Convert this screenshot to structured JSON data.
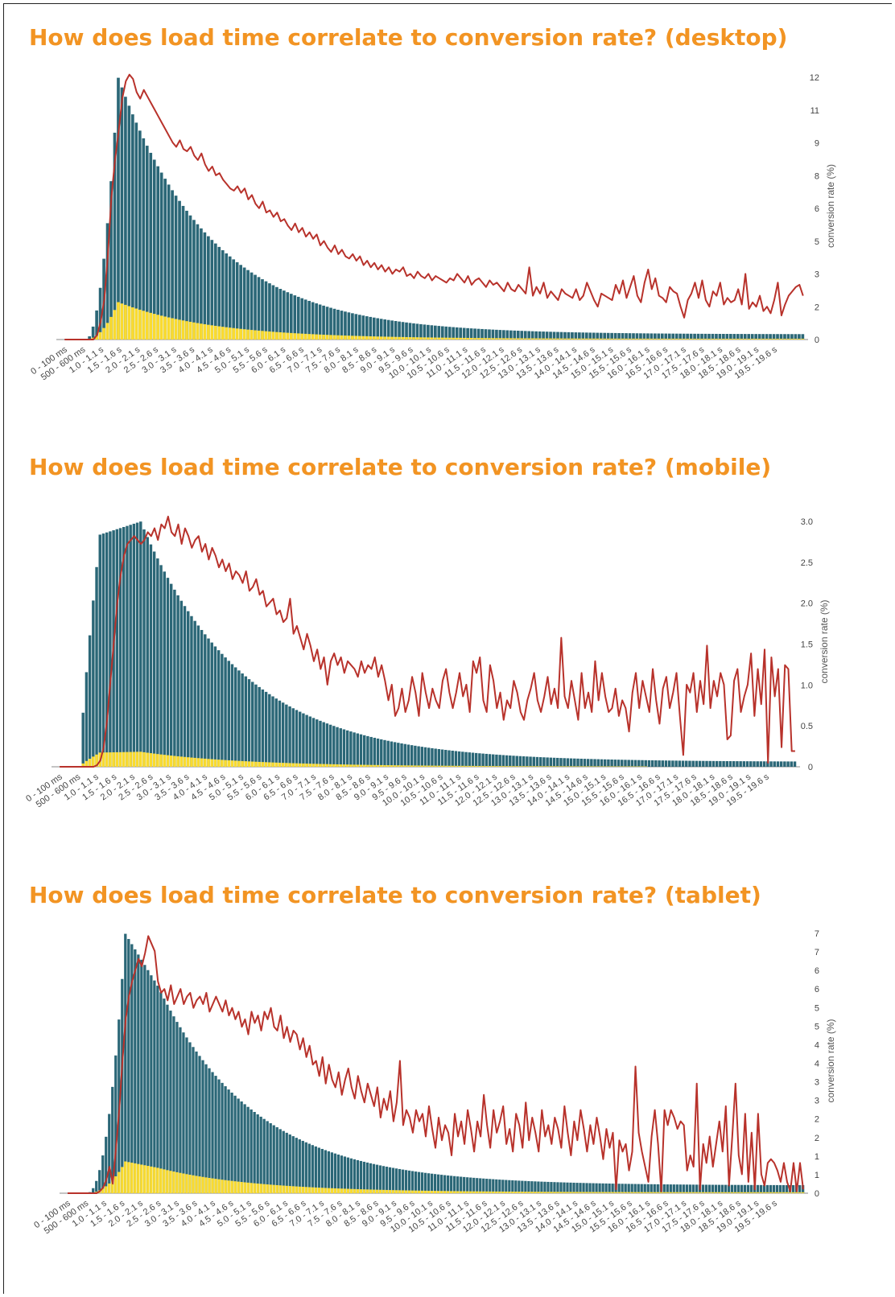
{
  "chart_data": [
    {
      "type": "bar",
      "title": "How does load time correlate to conversion rate? (desktop)",
      "ylabel": "conversion rate (%)",
      "yticks": [
        "12",
        "11",
        "9",
        "8",
        "6",
        "5",
        "3",
        "2",
        "0"
      ],
      "ylim": [
        0,
        12.2
      ],
      "peak_bin": 15,
      "line_peak_bin": 16,
      "tail_end": 0.12,
      "yellow_peak": 0.14,
      "line_values": [
        0,
        0,
        0,
        0,
        0,
        0,
        0,
        0,
        0,
        0.2,
        0.8,
        1.8,
        3.8,
        6.5,
        8.2,
        9.5,
        11.0,
        11.8,
        12.1,
        11.9,
        11.3,
        11.0,
        11.4,
        11.1,
        10.8,
        10.5,
        10.2,
        9.9,
        9.6,
        9.3,
        9.0,
        8.8,
        9.1,
        8.7,
        8.6,
        8.8,
        8.4,
        8.2,
        8.5,
        8.0,
        7.7,
        7.9,
        7.5,
        7.6,
        7.3,
        7.1,
        6.9,
        6.8,
        7.0,
        6.7,
        6.9,
        6.4,
        6.6,
        6.2,
        6.0,
        6.3,
        5.8,
        5.9,
        5.6,
        5.8,
        5.4,
        5.5,
        5.2,
        5.0,
        5.3,
        4.9,
        5.1,
        4.7,
        4.9,
        4.6,
        4.8,
        4.3,
        4.5,
        4.2,
        4.0,
        4.3,
        3.9,
        4.1,
        3.8,
        3.7,
        3.9,
        3.6,
        3.8,
        3.4,
        3.6,
        3.3,
        3.5,
        3.2,
        3.4,
        3.1,
        3.3,
        3.0,
        3.2,
        3.1,
        3.3,
        2.9,
        3.0,
        2.8,
        3.1,
        2.9,
        2.8,
        3.0,
        2.7,
        2.9,
        2.8,
        2.7,
        2.6,
        2.8,
        2.7,
        3.0,
        2.8,
        2.6,
        2.9,
        2.5,
        2.7,
        2.8,
        2.6,
        2.4,
        2.7,
        2.5,
        2.6,
        2.4,
        2.2,
        2.6,
        2.3,
        2.2,
        2.5,
        2.3,
        2.1,
        3.3,
        2.0,
        2.4,
        2.1,
        2.6,
        1.9,
        2.2,
        2.0,
        1.8,
        2.3,
        2.1,
        2.0,
        1.9,
        2.3,
        1.8,
        2.0,
        2.6,
        2.2,
        1.8,
        1.5,
        2.1,
        2.0,
        1.9,
        1.8,
        2.5,
        2.1,
        2.7,
        1.9,
        2.4,
        2.9,
        2.0,
        1.7,
        2.6,
        3.2,
        2.3,
        2.8,
        2.0,
        1.9,
        1.7,
        2.4,
        2.2,
        2.1,
        1.5,
        1.0,
        1.8,
        2.1,
        2.6,
        1.9,
        2.7,
        1.8,
        1.5,
        2.2,
        2.0,
        2.6,
        1.6,
        1.9,
        1.7,
        1.8,
        2.3,
        1.6,
        3.0,
        1.4,
        1.7,
        1.5,
        2.0,
        1.3,
        1.5,
        1.2,
        1.8,
        2.6,
        1.1,
        1.6,
        2.0,
        2.2,
        2.4,
        2.5,
        2.0
      ],
      "categories": [
        "0 - 100 ms",
        "500 - 600 ms",
        "1.0 - 1.1 s",
        "1.5 - 1.6 s",
        "2.0 - 2.1 s",
        "2.5 - 2.6 s",
        "3.0 - 3.1 s",
        "3.5 - 3.6 s",
        "4.0 - 4.1 s",
        "4.5 - 4.6 s",
        "5.0 - 5.1 s",
        "5.5 - 5.6 s",
        "6.0 - 6.1 s",
        "6.5 - 6.6 s",
        "7.0 - 7.1 s",
        "7.5 - 7.6 s",
        "8.0 - 8.1 s",
        "8.5 - 8.6 s",
        "9.0 - 9.1 s",
        "9.5 - 9.6 s",
        "10.0 - 10.1 s",
        "10.5 - 10.6 s",
        "11.0 - 11.1 s",
        "11.5 - 11.6 s",
        "12.0 - 12.1 s",
        "12.5 - 12.6 s",
        "13.0 - 13.1 s",
        "13.5 - 13.6 s",
        "14.0 - 14.1 s",
        "14.5 - 14.6 s",
        "15.0 - 15.1 s",
        "15.5 - 15.6 s",
        "16.0 - 16.1 s",
        "16.5 - 16.6 s",
        "17.0 - 17.1 s",
        "17.5 - 17.6 s",
        "18.0 - 18.1 s",
        "18.5 - 18.6 s",
        "19.0 - 19.1 s",
        "19.5 - 19.6 s"
      ],
      "colors": {
        "bars": "#2b6777",
        "secondary_bars": "#fadb2f",
        "line": "#b8322b"
      },
      "grid": false
    },
    {
      "type": "bar",
      "title": "How does load time correlate to conversion rate? (mobile)",
      "ylabel": "conversion rate (%)",
      "yticks": [
        "3.0",
        "2.5",
        "2.0",
        "1.5",
        "1.0",
        "0.5",
        "0"
      ],
      "ylim": [
        0,
        3.2
      ],
      "peak_bin": 24,
      "plateau_start": 12,
      "line_peak_bin": 26,
      "tail_end": 0.03,
      "yellow_peak": 0.06,
      "line_values": [
        0,
        0,
        0,
        0,
        0,
        0,
        0,
        0,
        0,
        0,
        0,
        0.02,
        0.08,
        0.25,
        0.6,
        1.1,
        1.6,
        2.1,
        2.45,
        2.7,
        2.85,
        2.9,
        2.95,
        2.9,
        2.85,
        2.9,
        3.0,
        2.95,
        3.05,
        2.9,
        3.1,
        3.05,
        3.2,
        3.0,
        2.95,
        3.1,
        2.85,
        3.05,
        2.95,
        2.8,
        2.9,
        2.95,
        2.75,
        2.85,
        2.65,
        2.8,
        2.7,
        2.55,
        2.65,
        2.5,
        2.6,
        2.4,
        2.5,
        2.45,
        2.35,
        2.5,
        2.25,
        2.3,
        2.4,
        2.2,
        2.25,
        2.05,
        2.1,
        2.15,
        1.95,
        2.0,
        1.85,
        1.9,
        2.15,
        1.7,
        1.8,
        1.65,
        1.5,
        1.7,
        1.55,
        1.35,
        1.5,
        1.25,
        1.4,
        1.05,
        1.35,
        1.45,
        1.3,
        1.4,
        1.2,
        1.35,
        1.3,
        1.25,
        1.15,
        1.35,
        1.2,
        1.3,
        1.25,
        1.4,
        1.15,
        1.3,
        1.1,
        0.85,
        1.05,
        0.65,
        0.75,
        1.0,
        0.7,
        0.85,
        1.15,
        0.95,
        0.65,
        1.2,
        0.95,
        0.75,
        1.0,
        0.85,
        0.75,
        1.1,
        1.25,
        0.95,
        0.75,
        0.95,
        1.2,
        0.9,
        1.05,
        0.7,
        1.35,
        1.2,
        1.4,
        0.85,
        0.7,
        1.3,
        1.1,
        0.75,
        0.95,
        0.6,
        0.85,
        0.75,
        1.1,
        0.95,
        0.7,
        0.6,
        0.85,
        1.0,
        1.2,
        0.85,
        0.7,
        0.9,
        1.15,
        0.8,
        1.0,
        0.75,
        1.65,
        0.9,
        0.75,
        1.1,
        0.85,
        0.6,
        1.2,
        0.75,
        0.95,
        0.7,
        1.35,
        0.85,
        1.2,
        0.9,
        0.7,
        0.75,
        1.0,
        0.65,
        0.85,
        0.75,
        0.45,
        0.95,
        1.2,
        0.75,
        1.1,
        0.9,
        0.7,
        1.25,
        0.85,
        0.55,
        1.0,
        1.15,
        0.75,
        0.95,
        1.2,
        0.65,
        0.15,
        1.05,
        0.95,
        1.2,
        0.7,
        1.1,
        0.8,
        1.55,
        0.75,
        1.1,
        0.9,
        1.2,
        1.05,
        0.35,
        0.4,
        1.1,
        1.25,
        0.7,
        0.9,
        1.05,
        1.45,
        0.65,
        1.25,
        0.8,
        1.5,
        0.05,
        1.4,
        0.9,
        1.25,
        0.25,
        1.3,
        1.25,
        0.2,
        0.2
      ],
      "categories": [
        "0 - 100 ms",
        "500 - 600 ms",
        "1.0 - 1.1 s",
        "1.5 - 1.6 s",
        "2.0 - 2.1 s",
        "2.5 - 2.6 s",
        "3.0 - 3.1 s",
        "3.5 - 3.6 s",
        "4.0 - 4.1 s",
        "4.5 - 4.6 s",
        "5.0 - 5.1 s",
        "5.5 - 5.6 s",
        "6.0 - 6.1 s",
        "6.5 - 6.6 s",
        "7.0 - 7.1 s",
        "7.5 - 7.6 s",
        "8.0 - 8.1 s",
        "8.5 - 8.6 s",
        "9.0 - 9.1 s",
        "9.5 - 9.6 s",
        "10.0 - 10.1 s",
        "10.5 - 10.6 s",
        "11.0 - 11.1 s",
        "11.5 - 11.6 s",
        "12.0 - 12.1 s",
        "12.5 - 12.6 s",
        "13.0 - 13.1 s",
        "13.5 - 13.6 s",
        "14.0 - 14.1 s",
        "14.5 - 14.6 s",
        "15.0 - 15.1 s",
        "15.5 - 15.6 s",
        "16.0 - 16.1 s",
        "16.5 - 16.6 s",
        "17.0 - 17.1 s",
        "17.5 - 17.6 s",
        "18.0 - 18.1 s",
        "18.5 - 18.6 s",
        "19.0 - 19.1 s",
        "19.5 - 19.6 s"
      ],
      "colors": {
        "bars": "#2b6777",
        "secondary_bars": "#fadb2f",
        "line": "#b8322b"
      },
      "grid": false
    },
    {
      "type": "bar",
      "title": "How does load time correlate to conversion rate? (tablet)",
      "ylabel": "conversion rate (%)",
      "yticks": [
        "7",
        "7",
        "6",
        "6",
        "5",
        "5",
        "4",
        "4",
        "3",
        "3",
        "2",
        "2",
        "1",
        "1",
        "0"
      ],
      "ylim": [
        0,
        7.0
      ],
      "peak_bin": 18,
      "shoulder_bin": 28,
      "line_peak_bin": 21,
      "tail_end": 0.05,
      "yellow_peak": 0.12,
      "line_values": [
        0,
        0,
        0,
        0,
        0,
        0,
        0,
        0,
        0,
        0,
        0.05,
        0.15,
        0.35,
        0.7,
        0.25,
        1.2,
        2.2,
        3.5,
        4.6,
        5.2,
        5.6,
        5.9,
        6.2,
        6.0,
        6.35,
        6.8,
        6.6,
        6.4,
        5.6,
        5.3,
        5.4,
        5.1,
        5.5,
        5.0,
        5.2,
        5.4,
        5.0,
        5.2,
        5.3,
        4.9,
        5.1,
        5.2,
        5.0,
        5.3,
        4.8,
        5.0,
        5.2,
        5.0,
        4.8,
        5.1,
        4.7,
        4.9,
        4.6,
        4.8,
        4.4,
        4.6,
        4.2,
        4.8,
        4.5,
        4.7,
        4.3,
        4.8,
        4.6,
        4.9,
        4.4,
        4.3,
        4.7,
        4.1,
        4.4,
        4.0,
        4.3,
        4.2,
        3.8,
        4.1,
        3.6,
        3.9,
        3.4,
        3.5,
        3.1,
        3.6,
        2.9,
        3.4,
        3.0,
        2.8,
        3.2,
        2.6,
        3.0,
        3.3,
        2.8,
        2.5,
        3.1,
        2.7,
        2.4,
        2.9,
        2.6,
        2.3,
        2.8,
        2.0,
        2.5,
        2.2,
        2.7,
        1.9,
        2.4,
        3.5,
        1.8,
        2.2,
        2.0,
        1.6,
        2.2,
        1.9,
        2.1,
        1.5,
        2.3,
        1.7,
        1.2,
        2.0,
        1.4,
        1.8,
        1.6,
        1.0,
        2.1,
        1.5,
        1.9,
        1.3,
        2.2,
        1.7,
        1.1,
        1.9,
        1.5,
        2.6,
        1.8,
        1.2,
        2.2,
        1.6,
        1.9,
        2.3,
        1.3,
        1.7,
        1.1,
        2.1,
        1.8,
        1.2,
        2.4,
        1.4,
        2.0,
        1.6,
        1.1,
        2.2,
        1.5,
        1.8,
        1.3,
        2.0,
        1.7,
        1.2,
        2.3,
        1.6,
        1.0,
        1.9,
        1.4,
        2.2,
        1.7,
        1.1,
        1.8,
        1.3,
        2.0,
        1.5,
        0.9,
        1.7,
        1.2,
        1.6,
        0.1,
        1.4,
        1.1,
        1.3,
        0.6,
        1.1,
        3.35,
        1.6,
        1.1,
        0.7,
        0.3,
        1.5,
        2.2,
        1.3,
        0.05,
        2.2,
        1.8,
        2.2,
        2.0,
        1.7,
        1.9,
        1.8,
        0.6,
        1.0,
        0.7,
        2.9,
        0.1,
        1.3,
        0.8,
        1.5,
        0.7,
        1.3,
        1.9,
        1.1,
        2.3,
        0.2,
        1.5,
        2.9,
        1.0,
        0.5,
        2.1,
        0.3,
        1.6,
        0.1,
        2.1,
        0.5,
        0.2,
        0.8,
        0.9,
        0.8,
        0.6,
        0.3,
        0.8,
        0.3,
        0.05,
        0.8,
        0.05,
        0.8,
        0.1
      ],
      "categories": [
        "0 - 100 ms",
        "500 - 600 ms",
        "1.0 - 1.1 s",
        "1.5 - 1.6 s",
        "2.0 - 2.1 s",
        "2.5 - 2.6 s",
        "3.0 - 3.1 s",
        "3.5 - 3.6 s",
        "4.0 - 4.1 s",
        "4.5 - 4.6 s",
        "5.0 - 5.1 s",
        "5.5 - 5.6 s",
        "6.0 - 6.1 s",
        "6.5 - 6.6 s",
        "7.0 - 7.1 s",
        "7.5 - 7.6 s",
        "8.0 - 8.1 s",
        "8.5 - 8.6 s",
        "9.0 - 9.1 s",
        "9.5 - 9.6 s",
        "10.0 - 10.1 s",
        "10.5 - 10.6 s",
        "11.0 - 11.1 s",
        "11.5 - 11.6 s",
        "12.0 - 12.1 s",
        "12.5 - 12.6 s",
        "13.0 - 13.1 s",
        "13.5 - 13.6 s",
        "14.0 - 14.1 s",
        "14.5 - 14.6 s",
        "15.0 - 15.1 s",
        "15.5 - 15.6 s",
        "16.0 - 16.1 s",
        "16.5 - 16.6 s",
        "17.0 - 17.1 s",
        "17.5 - 17.6 s",
        "18.0 - 18.1 s",
        "18.5 - 18.6 s",
        "19.0 - 19.1 s",
        "19.5 - 19.6 s"
      ],
      "colors": {
        "bars": "#2b6777",
        "secondary_bars": "#fadb2f",
        "line": "#b8322b"
      },
      "grid": false
    }
  ]
}
